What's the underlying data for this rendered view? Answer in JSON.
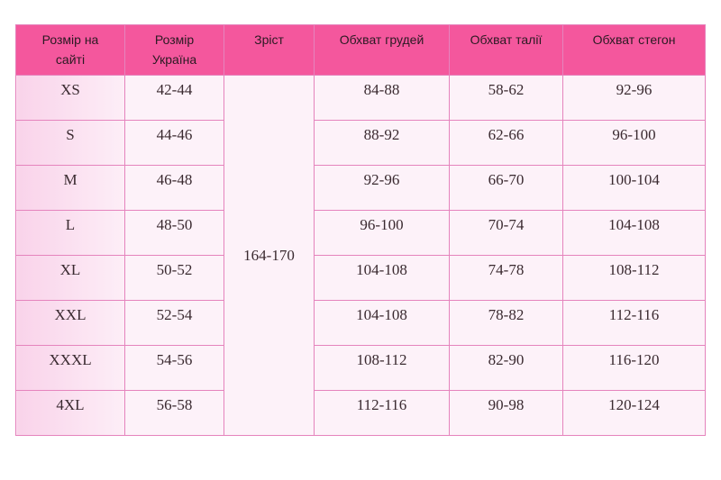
{
  "headers": [
    "Розмір на сайті",
    "Розмір Україна",
    "Зріст",
    "Обхват грудей",
    "Обхват талії",
    "Обхват стегон"
  ],
  "height": "164-170",
  "rows": [
    [
      "XS",
      "42-44",
      "84-88",
      "58-62",
      "92-96"
    ],
    [
      "S",
      "44-46",
      "88-92",
      "62-66",
      "96-100"
    ],
    [
      "M",
      "46-48",
      "92-96",
      "66-70",
      "100-104"
    ],
    [
      "L",
      "48-50",
      "96-100",
      "70-74",
      "104-108"
    ],
    [
      "XL",
      "50-52",
      "104-108",
      "74-78",
      "108-112"
    ],
    [
      "XXL",
      "52-54",
      "104-108",
      "78-82",
      "112-116"
    ],
    [
      "XXXL",
      "54-56",
      "108-112",
      "82-90",
      "116-120"
    ],
    [
      "4XL",
      "56-58",
      "112-116",
      "90-98",
      "120-124"
    ]
  ],
  "colors": {
    "header": "#f4579d",
    "border": "#e584bd",
    "cell": "#fdf2f9"
  }
}
